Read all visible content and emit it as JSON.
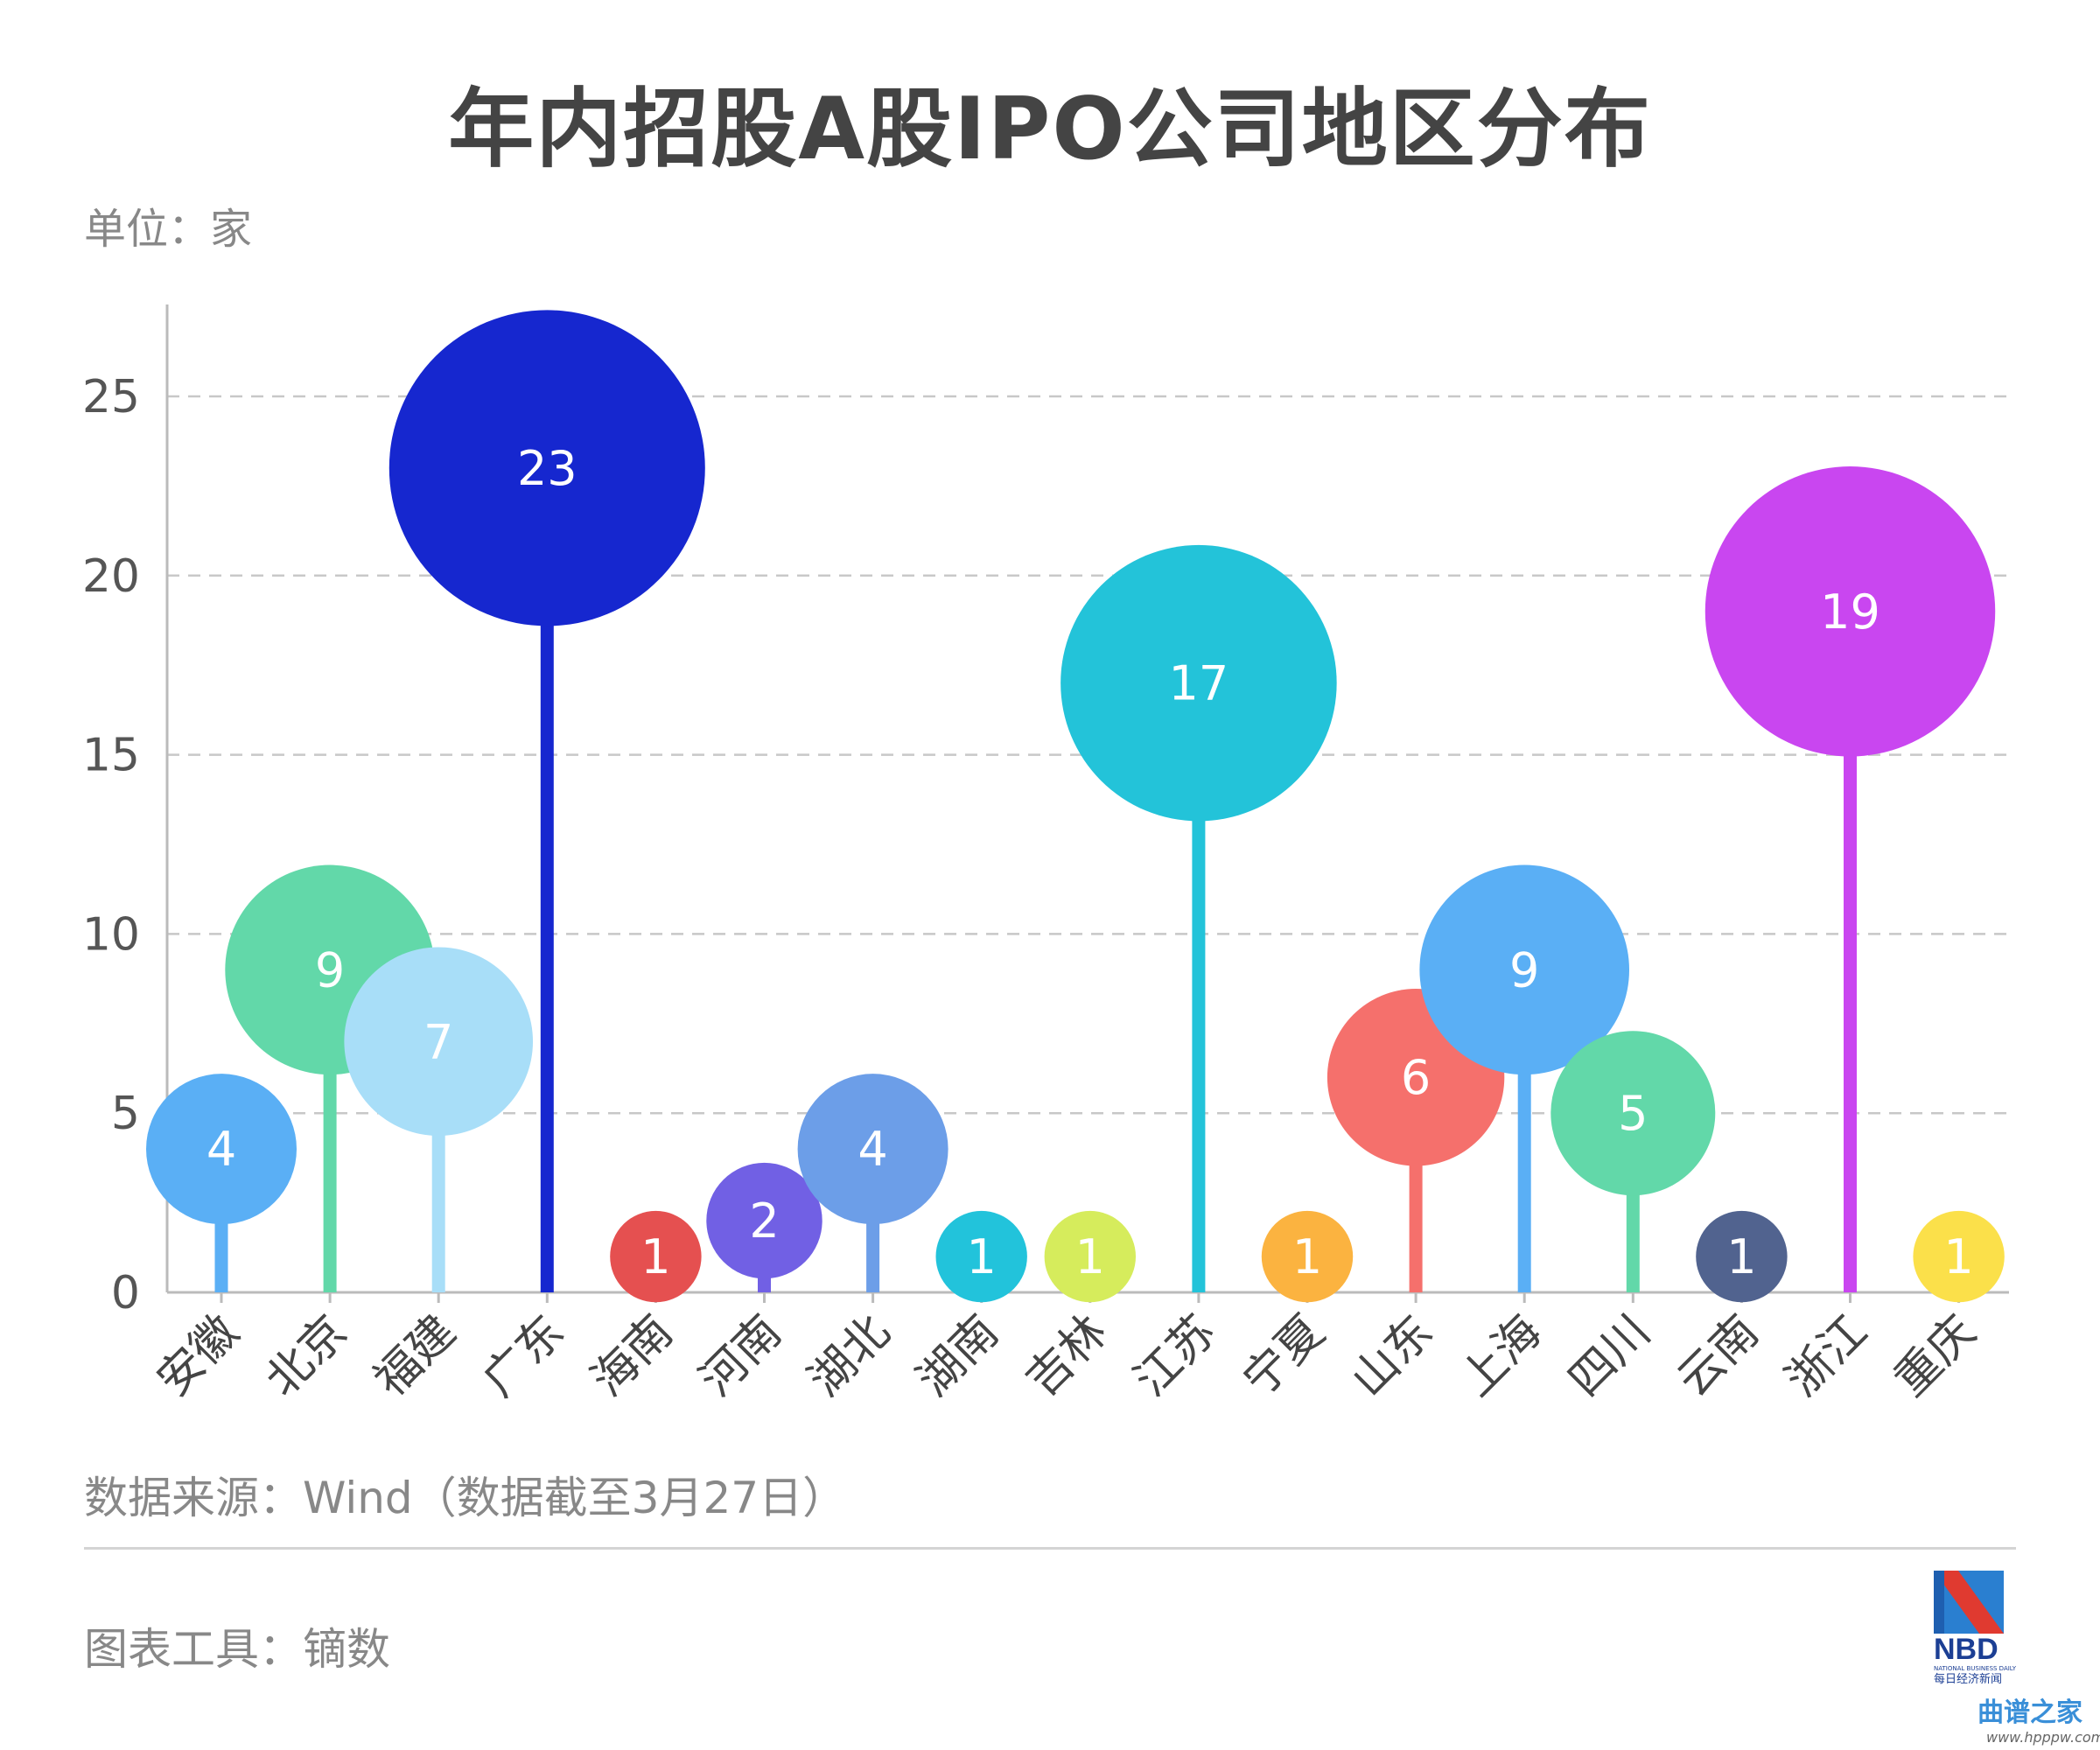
{
  "chart_data": {
    "type": "lollipop-bubble",
    "title": "年内招股A股IPO公司地区分布",
    "unit_label": "单位：家",
    "xlabel": "",
    "ylabel": "",
    "ylim": [
      0,
      27.5
    ],
    "yticks": [
      0,
      5,
      10,
      15,
      20,
      25
    ],
    "grid": true,
    "categories": [
      "安徽",
      "北京",
      "福建",
      "广东",
      "海南",
      "河南",
      "湖北",
      "湖南",
      "吉林",
      "江苏",
      "宁夏",
      "山东",
      "上海",
      "四川",
      "云南",
      "浙江",
      "重庆"
    ],
    "values": [
      4,
      9,
      7,
      23,
      1,
      2,
      4,
      1,
      1,
      17,
      1,
      6,
      9,
      5,
      1,
      19,
      1
    ],
    "colors": [
      "#5aaff5",
      "#62d8a9",
      "#a8def8",
      "#1627cf",
      "#e55050",
      "#7160e4",
      "#6c9ee8",
      "#22c3db",
      "#d6ec5c",
      "#23c3d9",
      "#fbb340",
      "#f5706c",
      "#5aaff5",
      "#62d8a9",
      "#51638f",
      "#c946f0",
      "#fbe04a"
    ]
  },
  "footer": {
    "source": "数据来源：Wind（数据截至3月27日）",
    "tool": "图表工具：镝数"
  },
  "logo": {
    "name": "NBD",
    "english": "NATIONAL BUSINESS DAILY",
    "chinese": "每日经济新闻"
  },
  "watermark": {
    "text": "曲谱之家",
    "url": "www.hpppw.com"
  }
}
